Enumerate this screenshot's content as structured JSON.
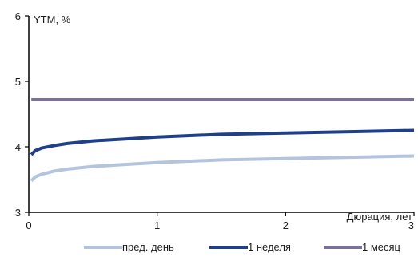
{
  "chart_data": {
    "type": "line",
    "ylabel": "YTM, %",
    "xlabel": "Дюрация, лет",
    "xlim": [
      0,
      3
    ],
    "ylim": [
      3,
      6
    ],
    "x_ticks": [
      "0",
      "1",
      "2",
      "3"
    ],
    "y_ticks": [
      "3",
      "4",
      "5",
      "6"
    ],
    "grid": false,
    "legend_position": "bottom",
    "series": [
      {
        "name": "пред. день",
        "color": "#b4c3de",
        "x": [
          0.02,
          0.05,
          0.1,
          0.2,
          0.3,
          0.5,
          0.75,
          1.0,
          1.5,
          2.0,
          2.5,
          3.0
        ],
        "y": [
          3.48,
          3.54,
          3.58,
          3.63,
          3.66,
          3.7,
          3.73,
          3.76,
          3.8,
          3.82,
          3.84,
          3.86
        ]
      },
      {
        "name": "1 неделя",
        "color": "#1f3f8a",
        "x": [
          0.02,
          0.05,
          0.1,
          0.2,
          0.3,
          0.5,
          0.75,
          1.0,
          1.5,
          2.0,
          2.5,
          3.0
        ],
        "y": [
          3.88,
          3.94,
          3.98,
          4.02,
          4.05,
          4.09,
          4.12,
          4.15,
          4.19,
          4.21,
          4.23,
          4.25
        ]
      },
      {
        "name": "1 месяц",
        "color": "#7a709a",
        "x": [
          0.02,
          1.0,
          2.0,
          3.0
        ],
        "y": [
          4.72,
          4.72,
          4.72,
          4.72
        ]
      }
    ]
  }
}
